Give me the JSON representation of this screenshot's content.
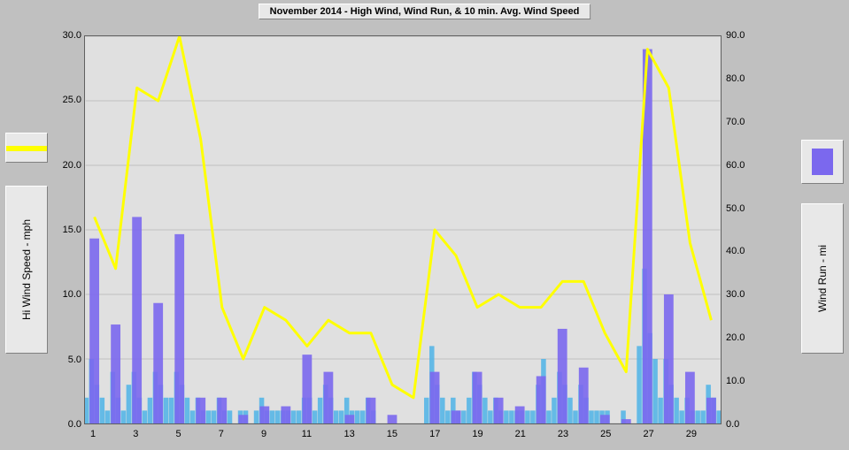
{
  "chart": {
    "title": "November 2014 - High Wind, Wind Run, & 10 min. Avg. Wind Speed",
    "background_color": "#c0c0c0",
    "plot_bg_color": "#e0e0e0",
    "left_axis": {
      "label": "Hi Wind Speed - mph",
      "min": 0,
      "max": 30,
      "step": 5,
      "tick_format": ".1f",
      "color": "#000000"
    },
    "right_axis": {
      "label": "Wind Run - mi",
      "min": 0,
      "max": 90,
      "step": 10,
      "tick_format": ".1f",
      "color": "#000000"
    },
    "x_axis": {
      "min": 1,
      "max": 30,
      "tick_step": 2,
      "tick_start": 1
    },
    "series": {
      "hi_wind_line": {
        "type": "line",
        "axis": "left",
        "color": "#ffff00",
        "line_width": 3,
        "days": [
          1,
          2,
          3,
          4,
          5,
          6,
          7,
          8,
          9,
          10,
          11,
          12,
          13,
          14,
          15,
          16,
          17,
          18,
          19,
          20,
          21,
          22,
          23,
          24,
          25,
          26,
          27,
          28,
          29,
          30
        ],
        "values": [
          16,
          12,
          26,
          25,
          30,
          22,
          9,
          5,
          9,
          8,
          6,
          8,
          7,
          7,
          3,
          2,
          15,
          13,
          9,
          10,
          9,
          9,
          11,
          11,
          7,
          4,
          29,
          26,
          14,
          8
        ]
      },
      "wind_run_bars": {
        "type": "bar",
        "axis": "right",
        "color": "#7b68ee",
        "opacity": 0.9,
        "bar_width": 0.45,
        "days": [
          1,
          2,
          3,
          4,
          5,
          6,
          7,
          8,
          9,
          10,
          11,
          12,
          13,
          14,
          15,
          16,
          17,
          18,
          19,
          20,
          21,
          22,
          23,
          24,
          25,
          26,
          27,
          28,
          29,
          30
        ],
        "values": [
          43,
          23,
          48,
          28,
          44,
          6,
          6,
          2,
          4,
          4,
          16,
          12,
          2,
          6,
          2,
          0,
          12,
          3,
          12,
          6,
          4,
          11,
          22,
          13,
          2,
          1,
          87,
          30,
          12,
          6
        ]
      },
      "avg_wind_bars": {
        "type": "dense_bar",
        "axis": "left",
        "color": "#4db3e6",
        "opacity": 0.85,
        "samples_per_day": 4,
        "days": [
          1,
          2,
          3,
          4,
          5,
          6,
          7,
          8,
          9,
          10,
          11,
          12,
          13,
          14,
          15,
          16,
          17,
          18,
          19,
          20,
          21,
          22,
          23,
          24,
          25,
          26,
          27,
          28,
          29,
          30
        ],
        "values": [
          [
            2,
            5,
            3,
            2
          ],
          [
            1,
            4,
            2,
            1
          ],
          [
            3,
            4,
            2,
            1
          ],
          [
            2,
            4,
            3,
            2
          ],
          [
            2,
            4,
            3,
            2
          ],
          [
            1,
            2,
            1,
            1
          ],
          [
            1,
            2,
            1,
            1
          ],
          [
            0,
            1,
            1,
            0
          ],
          [
            1,
            2,
            1,
            1
          ],
          [
            1,
            1,
            1,
            1
          ],
          [
            1,
            2,
            2,
            1
          ],
          [
            2,
            3,
            2,
            1
          ],
          [
            1,
            2,
            1,
            1
          ],
          [
            1,
            2,
            1,
            0
          ],
          [
            0,
            0,
            0,
            0
          ],
          [
            0,
            0,
            0,
            0
          ],
          [
            2,
            6,
            3,
            2
          ],
          [
            1,
            2,
            1,
            1
          ],
          [
            2,
            4,
            3,
            2
          ],
          [
            1,
            2,
            1,
            1
          ],
          [
            1,
            1,
            1,
            1
          ],
          [
            1,
            3,
            5,
            1
          ],
          [
            2,
            4,
            3,
            2
          ],
          [
            1,
            3,
            2,
            1
          ],
          [
            1,
            1,
            1,
            0
          ],
          [
            0,
            1,
            0,
            0
          ],
          [
            6,
            12,
            7,
            5
          ],
          [
            2,
            5,
            3,
            2
          ],
          [
            1,
            2,
            1,
            1
          ],
          [
            1,
            3,
            2,
            1
          ]
        ]
      }
    }
  }
}
